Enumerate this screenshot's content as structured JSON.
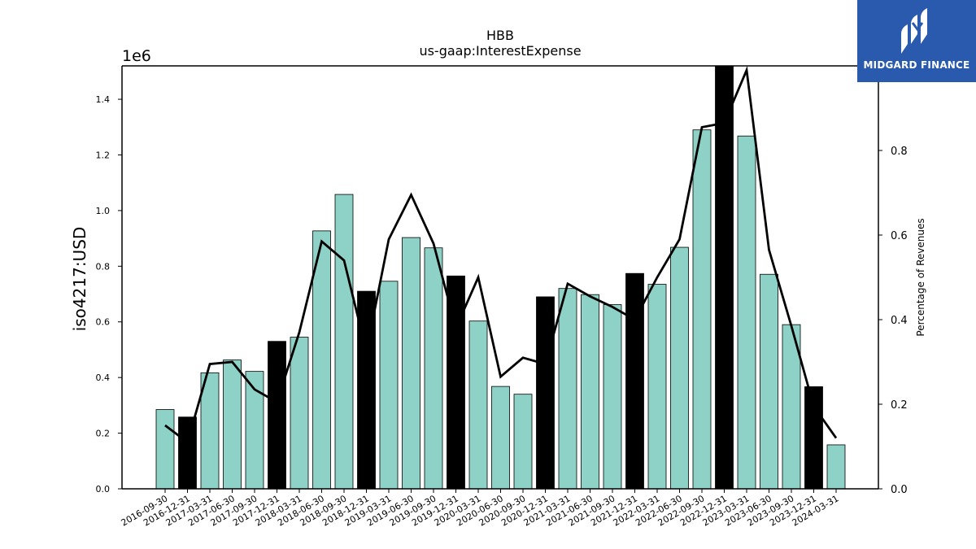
{
  "brand": {
    "name": "MIDGARD FINANCE",
    "icon": "midgard-logo-icon",
    "color": "#2a5aae"
  },
  "chart_data": {
    "type": "bar",
    "title": "HBB",
    "subtitle": "us-gaap:InterestExpense",
    "ylabel": "iso4217:USD",
    "y_multiplier_label": "1e6",
    "y2label": "Percentage of Revenues",
    "ylim": [
      0,
      1520000
    ],
    "y2lim": [
      0,
      1.0
    ],
    "yticks": [
      "0.0",
      "0.2",
      "0.4",
      "0.6",
      "0.8",
      "1.0",
      "1.2",
      "1.4"
    ],
    "y2ticks": [
      "0.0",
      "0.2",
      "0.4",
      "0.6",
      "0.8"
    ],
    "grid": false,
    "categories": [
      "2016-09-30",
      "2016-12-31",
      "2017-03-31",
      "2017-06-30",
      "2017-09-30",
      "2017-12-31",
      "2018-03-31",
      "2018-06-30",
      "2018-09-30",
      "2018-12-31",
      "2019-03-31",
      "2019-06-30",
      "2019-09-30",
      "2019-12-31",
      "2020-03-31",
      "2020-06-30",
      "2020-09-30",
      "2020-12-31",
      "2021-03-31",
      "2021-06-30",
      "2021-09-30",
      "2021-12-31",
      "2022-03-31",
      "2022-06-30",
      "2022-09-30",
      "2022-12-31",
      "2023-03-31",
      "2023-06-30",
      "2023-09-30",
      "2023-12-31",
      "2024-03-31"
    ],
    "series": [
      {
        "type": "bar",
        "values": [
          285000,
          258000,
          417000,
          463000,
          422000,
          530000,
          545000,
          927000,
          1058000,
          710000,
          746000,
          903000,
          866000,
          765000,
          603000,
          368000,
          340000,
          690000,
          720000,
          698000,
          662000,
          774000,
          735000,
          868000,
          1290000,
          1520000,
          1268000,
          771000,
          590000,
          367000,
          158000
        ],
        "colors": [
          "#8ed1c6",
          "#000000",
          "#8ed1c6",
          "#8ed1c6",
          "#8ed1c6",
          "#000000",
          "#8ed1c6",
          "#8ed1c6",
          "#8ed1c6",
          "#000000",
          "#8ed1c6",
          "#8ed1c6",
          "#8ed1c6",
          "#000000",
          "#8ed1c6",
          "#8ed1c6",
          "#8ed1c6",
          "#000000",
          "#8ed1c6",
          "#8ed1c6",
          "#8ed1c6",
          "#000000",
          "#8ed1c6",
          "#8ed1c6",
          "#8ed1c6",
          "#000000",
          "#8ed1c6",
          "#8ed1c6",
          "#8ed1c6",
          "#000000",
          "#8ed1c6"
        ]
      },
      {
        "type": "line",
        "axis": "right",
        "color": "#000000",
        "values": [
          0.15,
          0.11,
          0.295,
          0.3,
          0.235,
          0.205,
          0.37,
          0.585,
          0.54,
          0.325,
          0.59,
          0.695,
          0.58,
          0.38,
          0.5,
          0.265,
          0.31,
          0.295,
          0.485,
          0.455,
          0.43,
          0.4,
          0.5,
          0.59,
          0.855,
          0.865,
          0.99,
          0.565,
          0.385,
          0.195,
          0.12
        ]
      }
    ]
  }
}
